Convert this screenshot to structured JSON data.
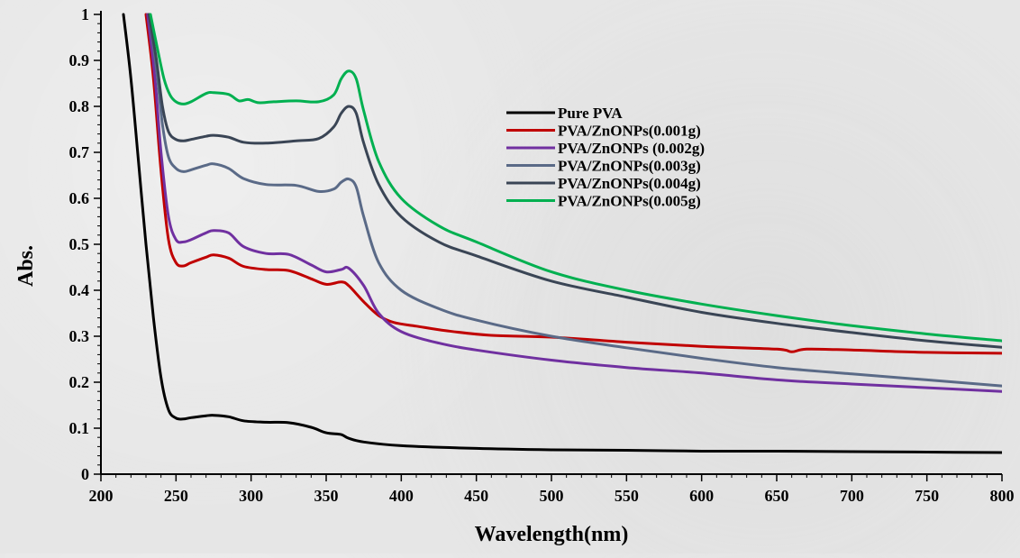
{
  "chart_data": {
    "type": "line",
    "xlabel": "Wavelength(nm)",
    "ylabel": "Abs.",
    "xlim": [
      200,
      800
    ],
    "ylim": [
      0,
      1
    ],
    "x_ticks": [
      "200",
      "250",
      "300",
      "350",
      "400",
      "450",
      "500",
      "550",
      "600",
      "650",
      "700",
      "750",
      "800"
    ],
    "y_ticks": [
      "0",
      "0.1",
      "0.2",
      "0.3",
      "0.4",
      "0.5",
      "0.6",
      "0.7",
      "0.8",
      "0.9",
      "1"
    ],
    "grid": false,
    "legend_position": "top-center",
    "series": [
      {
        "name": "Pure PVA",
        "color": "#000000",
        "points": [
          [
            215,
            1.0
          ],
          [
            220,
            0.86
          ],
          [
            225,
            0.68
          ],
          [
            230,
            0.5
          ],
          [
            235,
            0.34
          ],
          [
            240,
            0.21
          ],
          [
            245,
            0.14
          ],
          [
            250,
            0.122
          ],
          [
            255,
            0.12
          ],
          [
            260,
            0.123
          ],
          [
            270,
            0.127
          ],
          [
            275,
            0.128
          ],
          [
            285,
            0.125
          ],
          [
            295,
            0.116
          ],
          [
            310,
            0.113
          ],
          [
            325,
            0.112
          ],
          [
            340,
            0.102
          ],
          [
            350,
            0.09
          ],
          [
            360,
            0.086
          ],
          [
            365,
            0.078
          ],
          [
            375,
            0.07
          ],
          [
            400,
            0.062
          ],
          [
            450,
            0.056
          ],
          [
            500,
            0.053
          ],
          [
            550,
            0.052
          ],
          [
            600,
            0.05
          ],
          [
            650,
            0.05
          ],
          [
            700,
            0.049
          ],
          [
            750,
            0.048
          ],
          [
            800,
            0.047
          ]
        ]
      },
      {
        "name": "PVA/ZnONPs(0.001g)",
        "color": "#c00000",
        "points": [
          [
            230,
            1.0
          ],
          [
            235,
            0.86
          ],
          [
            240,
            0.66
          ],
          [
            245,
            0.51
          ],
          [
            250,
            0.46
          ],
          [
            255,
            0.453
          ],
          [
            260,
            0.46
          ],
          [
            270,
            0.472
          ],
          [
            275,
            0.477
          ],
          [
            285,
            0.47
          ],
          [
            295,
            0.452
          ],
          [
            310,
            0.445
          ],
          [
            325,
            0.443
          ],
          [
            340,
            0.425
          ],
          [
            350,
            0.413
          ],
          [
            360,
            0.418
          ],
          [
            365,
            0.41
          ],
          [
            375,
            0.375
          ],
          [
            385,
            0.345
          ],
          [
            395,
            0.33
          ],
          [
            410,
            0.322
          ],
          [
            430,
            0.312
          ],
          [
            460,
            0.302
          ],
          [
            500,
            0.298
          ],
          [
            550,
            0.287
          ],
          [
            600,
            0.278
          ],
          [
            650,
            0.272
          ],
          [
            660,
            0.266
          ],
          [
            670,
            0.272
          ],
          [
            700,
            0.27
          ],
          [
            750,
            0.265
          ],
          [
            800,
            0.263
          ]
        ]
      },
      {
        "name": "PVA/ZnONPs (0.002g)",
        "color": "#7030a0",
        "points": [
          [
            231,
            1.0
          ],
          [
            236,
            0.86
          ],
          [
            240,
            0.7
          ],
          [
            245,
            0.56
          ],
          [
            250,
            0.51
          ],
          [
            255,
            0.505
          ],
          [
            260,
            0.51
          ],
          [
            270,
            0.525
          ],
          [
            275,
            0.53
          ],
          [
            285,
            0.525
          ],
          [
            295,
            0.495
          ],
          [
            310,
            0.48
          ],
          [
            325,
            0.478
          ],
          [
            340,
            0.455
          ],
          [
            350,
            0.44
          ],
          [
            360,
            0.445
          ],
          [
            365,
            0.448
          ],
          [
            375,
            0.41
          ],
          [
            385,
            0.35
          ],
          [
            400,
            0.31
          ],
          [
            425,
            0.285
          ],
          [
            450,
            0.27
          ],
          [
            500,
            0.248
          ],
          [
            550,
            0.232
          ],
          [
            600,
            0.22
          ],
          [
            650,
            0.205
          ],
          [
            700,
            0.196
          ],
          [
            750,
            0.188
          ],
          [
            800,
            0.18
          ]
        ]
      },
      {
        "name": "PVA/ZnONPs(0.003g)",
        "color": "#5a6a87",
        "points": [
          [
            232,
            1.0
          ],
          [
            237,
            0.88
          ],
          [
            241,
            0.76
          ],
          [
            245,
            0.69
          ],
          [
            250,
            0.665
          ],
          [
            255,
            0.658
          ],
          [
            260,
            0.662
          ],
          [
            270,
            0.672
          ],
          [
            275,
            0.675
          ],
          [
            285,
            0.665
          ],
          [
            295,
            0.643
          ],
          [
            310,
            0.63
          ],
          [
            330,
            0.628
          ],
          [
            345,
            0.615
          ],
          [
            355,
            0.62
          ],
          [
            360,
            0.635
          ],
          [
            365,
            0.642
          ],
          [
            370,
            0.625
          ],
          [
            375,
            0.56
          ],
          [
            385,
            0.46
          ],
          [
            400,
            0.4
          ],
          [
            425,
            0.36
          ],
          [
            450,
            0.335
          ],
          [
            500,
            0.3
          ],
          [
            550,
            0.275
          ],
          [
            600,
            0.252
          ],
          [
            650,
            0.232
          ],
          [
            700,
            0.218
          ],
          [
            750,
            0.205
          ],
          [
            800,
            0.192
          ]
        ]
      },
      {
        "name": "PVA/ZnONPs(0.004g)",
        "color": "#3a4555",
        "points": [
          [
            232,
            1.0
          ],
          [
            237,
            0.9
          ],
          [
            241,
            0.8
          ],
          [
            245,
            0.745
          ],
          [
            250,
            0.728
          ],
          [
            255,
            0.725
          ],
          [
            260,
            0.728
          ],
          [
            270,
            0.735
          ],
          [
            275,
            0.737
          ],
          [
            285,
            0.733
          ],
          [
            295,
            0.722
          ],
          [
            310,
            0.72
          ],
          [
            330,
            0.725
          ],
          [
            345,
            0.73
          ],
          [
            355,
            0.755
          ],
          [
            360,
            0.785
          ],
          [
            365,
            0.8
          ],
          [
            370,
            0.785
          ],
          [
            375,
            0.72
          ],
          [
            385,
            0.63
          ],
          [
            400,
            0.56
          ],
          [
            425,
            0.505
          ],
          [
            450,
            0.475
          ],
          [
            500,
            0.42
          ],
          [
            550,
            0.385
          ],
          [
            600,
            0.352
          ],
          [
            650,
            0.328
          ],
          [
            700,
            0.308
          ],
          [
            750,
            0.29
          ],
          [
            800,
            0.276
          ]
        ]
      },
      {
        "name": "PVA/ZnONPs(0.005g)",
        "color": "#00b050",
        "points": [
          [
            233,
            1.0
          ],
          [
            238,
            0.92
          ],
          [
            242,
            0.86
          ],
          [
            246,
            0.825
          ],
          [
            250,
            0.81
          ],
          [
            255,
            0.805
          ],
          [
            260,
            0.81
          ],
          [
            270,
            0.828
          ],
          [
            275,
            0.83
          ],
          [
            285,
            0.826
          ],
          [
            292,
            0.812
          ],
          [
            298,
            0.815
          ],
          [
            305,
            0.808
          ],
          [
            315,
            0.81
          ],
          [
            330,
            0.812
          ],
          [
            345,
            0.81
          ],
          [
            355,
            0.825
          ],
          [
            360,
            0.86
          ],
          [
            365,
            0.877
          ],
          [
            370,
            0.86
          ],
          [
            375,
            0.79
          ],
          [
            385,
            0.68
          ],
          [
            400,
            0.6
          ],
          [
            425,
            0.54
          ],
          [
            450,
            0.505
          ],
          [
            500,
            0.44
          ],
          [
            550,
            0.4
          ],
          [
            600,
            0.37
          ],
          [
            650,
            0.345
          ],
          [
            700,
            0.323
          ],
          [
            750,
            0.305
          ],
          [
            800,
            0.29
          ]
        ]
      }
    ]
  }
}
